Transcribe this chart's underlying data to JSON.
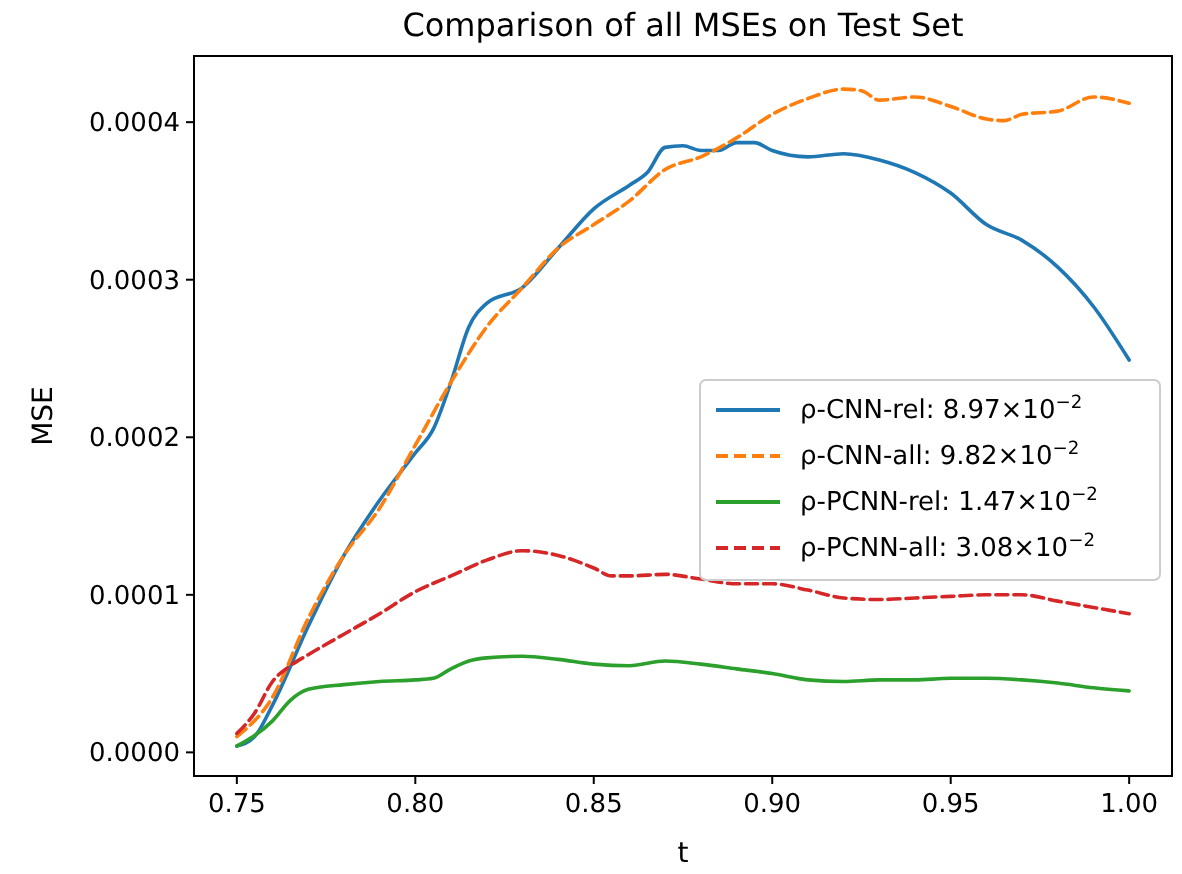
{
  "chart_data": {
    "type": "line",
    "title": "Comparison of all MSEs on Test Set",
    "xlabel": "t",
    "ylabel": "MSE",
    "xlim": [
      0.738,
      1.012
    ],
    "ylim": [
      -1.5e-05,
      0.000442
    ],
    "xticks": [
      {
        "value": 0.75,
        "label": "0.75"
      },
      {
        "value": 0.8,
        "label": "0.80"
      },
      {
        "value": 0.85,
        "label": "0.85"
      },
      {
        "value": 0.9,
        "label": "0.90"
      },
      {
        "value": 0.95,
        "label": "0.95"
      },
      {
        "value": 1,
        "label": "1.00"
      }
    ],
    "yticks": [
      {
        "value": 0,
        "label": "0.0000"
      },
      {
        "value": 0.0001,
        "label": "0.0001"
      },
      {
        "value": 0.0002,
        "label": "0.0002"
      },
      {
        "value": 0.0003,
        "label": "0.0003"
      },
      {
        "value": 0.0004,
        "label": "0.0004"
      }
    ],
    "grid": false,
    "legend": "right",
    "marker": "none",
    "series": [
      {
        "name": "ρ-CNN-rel: 8.97×10$^{−2}$",
        "color": "#1f77b4",
        "line_style": "solid",
        "x": [
          0.75,
          0.755,
          0.76,
          0.77,
          0.78,
          0.79,
          0.8,
          0.805,
          0.81,
          0.815,
          0.82,
          0.83,
          0.84,
          0.85,
          0.86,
          0.865,
          0.87,
          0.875,
          0.88,
          0.885,
          0.89,
          0.895,
          0.9,
          0.91,
          0.92,
          0.93,
          0.94,
          0.95,
          0.96,
          0.97,
          0.98,
          0.99,
          1.0
        ],
        "values": [
          4e-06,
          1e-05,
          3e-05,
          8e-05,
          0.000125,
          0.00016,
          0.00019,
          0.000205,
          0.000235,
          0.00027,
          0.000285,
          0.000295,
          0.00032,
          0.000345,
          0.00036,
          0.000368,
          0.000384,
          0.000385,
          0.000382,
          0.000382,
          0.000387,
          0.000387,
          0.000382,
          0.000378,
          0.00038,
          0.000376,
          0.000368,
          0.000355,
          0.000335,
          0.000325,
          0.000308,
          0.000283,
          0.000249
        ]
      },
      {
        "name": "ρ-CNN-all: 9.82×10$^{−2}$",
        "color": "#ff7f0e",
        "line_style": "dashed",
        "x": [
          0.75,
          0.76,
          0.77,
          0.78,
          0.79,
          0.8,
          0.81,
          0.82,
          0.83,
          0.84,
          0.85,
          0.86,
          0.87,
          0.88,
          0.89,
          0.9,
          0.91,
          0.92,
          0.925,
          0.93,
          0.94,
          0.95,
          0.96,
          0.965,
          0.97,
          0.98,
          0.99,
          1.0
        ],
        "values": [
          1e-05,
          3.5e-05,
          8.5e-05,
          0.000125,
          0.000155,
          0.000195,
          0.000235,
          0.00027,
          0.000295,
          0.00032,
          0.000335,
          0.00035,
          0.00037,
          0.000378,
          0.00039,
          0.000405,
          0.000415,
          0.000421,
          0.00042,
          0.000414,
          0.000416,
          0.00041,
          0.000402,
          0.000401,
          0.000405,
          0.000407,
          0.000416,
          0.000412
        ]
      },
      {
        "name": "ρ-PCNN-rel: 1.47×10$^{−2}$",
        "color": "#2ca02c",
        "line_style": "solid",
        "x": [
          0.75,
          0.76,
          0.765,
          0.77,
          0.78,
          0.79,
          0.8,
          0.805,
          0.81,
          0.815,
          0.82,
          0.83,
          0.84,
          0.85,
          0.86,
          0.87,
          0.88,
          0.89,
          0.9,
          0.91,
          0.92,
          0.93,
          0.94,
          0.95,
          0.96,
          0.97,
          0.98,
          0.99,
          1.0
        ],
        "values": [
          4e-06,
          2e-05,
          3.3e-05,
          4e-05,
          4.3e-05,
          4.5e-05,
          4.6e-05,
          4.7e-05,
          5.3e-05,
          5.8e-05,
          6e-05,
          6.1e-05,
          5.9e-05,
          5.6e-05,
          5.5e-05,
          5.8e-05,
          5.6e-05,
          5.3e-05,
          5e-05,
          4.6e-05,
          4.5e-05,
          4.6e-05,
          4.6e-05,
          4.7e-05,
          4.7e-05,
          4.6e-05,
          4.4e-05,
          4.1e-05,
          3.9e-05
        ]
      },
      {
        "name": "ρ-PCNN-all: 3.08×10$^{−2}$",
        "color": "#d62728",
        "line_style": "dashed",
        "x": [
          0.75,
          0.755,
          0.76,
          0.765,
          0.77,
          0.78,
          0.79,
          0.8,
          0.81,
          0.82,
          0.83,
          0.84,
          0.85,
          0.855,
          0.86,
          0.87,
          0.88,
          0.89,
          0.9,
          0.91,
          0.92,
          0.93,
          0.94,
          0.95,
          0.96,
          0.97,
          0.98,
          0.99,
          1.0
        ],
        "values": [
          1.2e-05,
          2.5e-05,
          4.5e-05,
          5.5e-05,
          6.2e-05,
          7.5e-05,
          8.8e-05,
          0.000102,
          0.000112,
          0.000122,
          0.000128,
          0.000125,
          0.000117,
          0.000112,
          0.000112,
          0.000113,
          0.00011,
          0.000107,
          0.000107,
          0.000103,
          9.8e-05,
          9.7e-05,
          9.8e-05,
          9.9e-05,
          0.0001,
          0.0001,
          9.6e-05,
          9.2e-05,
          8.8e-05
        ]
      }
    ]
  }
}
